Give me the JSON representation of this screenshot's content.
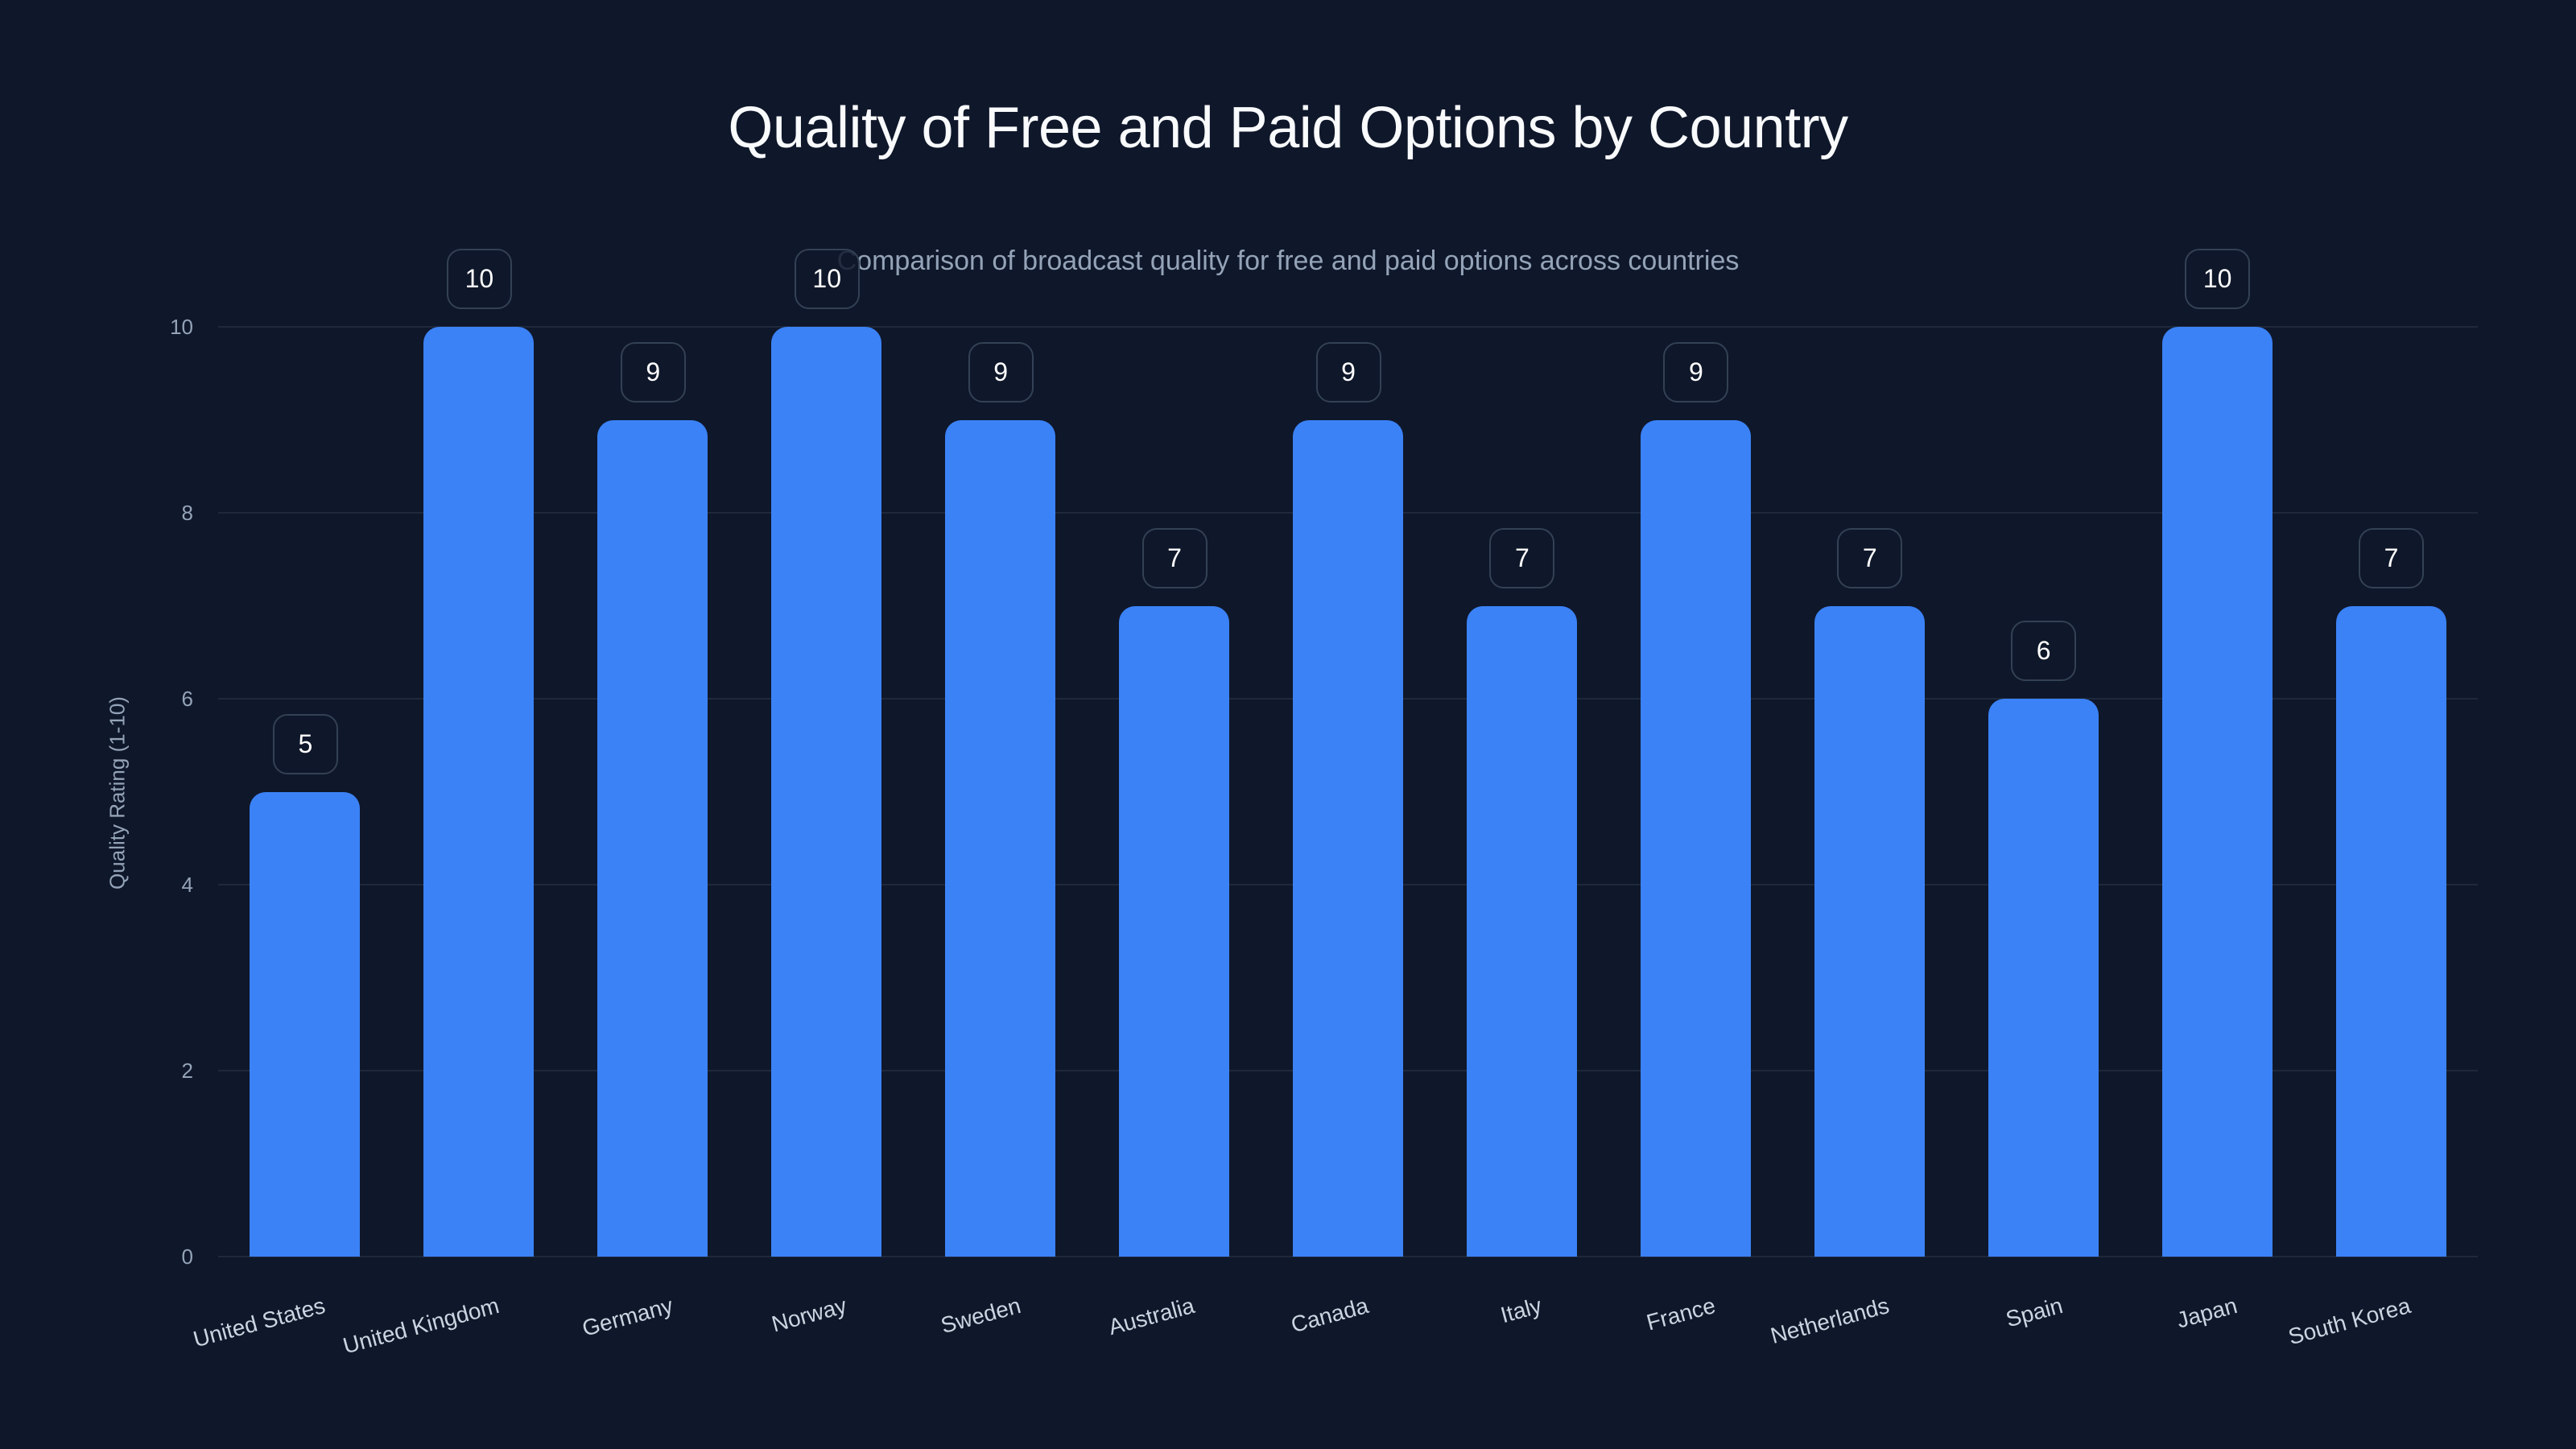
{
  "chart_data": {
    "type": "bar",
    "title": "Quality of Free and Paid Options by Country",
    "subtitle": "Comparison of broadcast quality for free and paid options across countries",
    "xlabel": "",
    "ylabel": "Quality Rating (1-10)",
    "ylim": [
      0,
      10
    ],
    "yticks": [
      0,
      2,
      4,
      6,
      8,
      10
    ],
    "grid": true,
    "legend": null,
    "bar_color": "#3b82f6",
    "categories": [
      "United States",
      "United Kingdom",
      "Germany",
      "Norway",
      "Sweden",
      "Australia",
      "Canada",
      "Italy",
      "France",
      "Netherlands",
      "Spain",
      "Japan",
      "South Korea"
    ],
    "values": [
      5,
      10,
      9,
      10,
      9,
      7,
      9,
      7,
      9,
      7,
      6,
      10,
      7
    ]
  },
  "colors": {
    "background": "#0f172a",
    "bar": "#3b82f6",
    "grid": "#1e293b",
    "title": "#f8fafc",
    "muted_text": "#94a3b8",
    "label_border": "#334155"
  }
}
